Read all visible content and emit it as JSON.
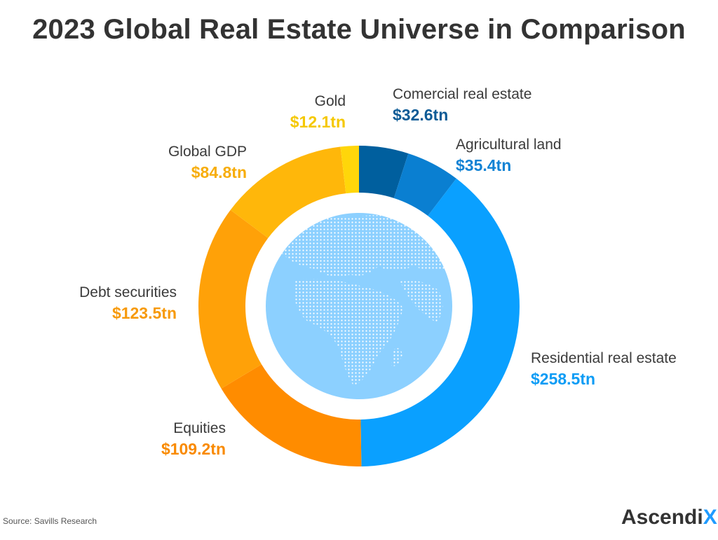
{
  "header": {
    "title": "2023 Global Real Estate Universe in Comparison"
  },
  "chart_data": {
    "type": "pie",
    "style": "donut",
    "unit": "$tn",
    "center_image": "globe",
    "slices": [
      {
        "name": "Comercial real estate",
        "value": 32.6,
        "value_label": "$32.6tn",
        "color": "#005f9e",
        "text_color": "#0d5b96"
      },
      {
        "name": "Agricultural land",
        "value": 35.4,
        "value_label": "$35.4tn",
        "color": "#0a7fd1",
        "text_color": "#1182d4"
      },
      {
        "name": "Residential real estate",
        "value": 258.5,
        "value_label": "$258.5tn",
        "color": "#0aa0ff",
        "text_color": "#0d9cf5"
      },
      {
        "name": "Equities",
        "value": 109.2,
        "value_label": "$109.2tn",
        "color": "#ff8c00",
        "text_color": "#f98a00"
      },
      {
        "name": "Debt securities",
        "value": 123.5,
        "value_label": "$123.5tn",
        "color": "#ffa108",
        "text_color": "#f79a0c"
      },
      {
        "name": "Global GDP",
        "value": 84.8,
        "value_label": "$84.8tn",
        "color": "#ffb70a",
        "text_color": "#f7ad0b"
      },
      {
        "name": "Gold",
        "value": 12.1,
        "value_label": "$12.1tn",
        "color": "#ffd60a",
        "text_color": "#f5c800"
      }
    ]
  },
  "footer": {
    "source": "Source:  Savills Research",
    "logo_main": "Ascendi",
    "logo_accent": "X"
  },
  "icons": {
    "globe": "globe-icon",
    "logo": "ascendix-logo"
  }
}
